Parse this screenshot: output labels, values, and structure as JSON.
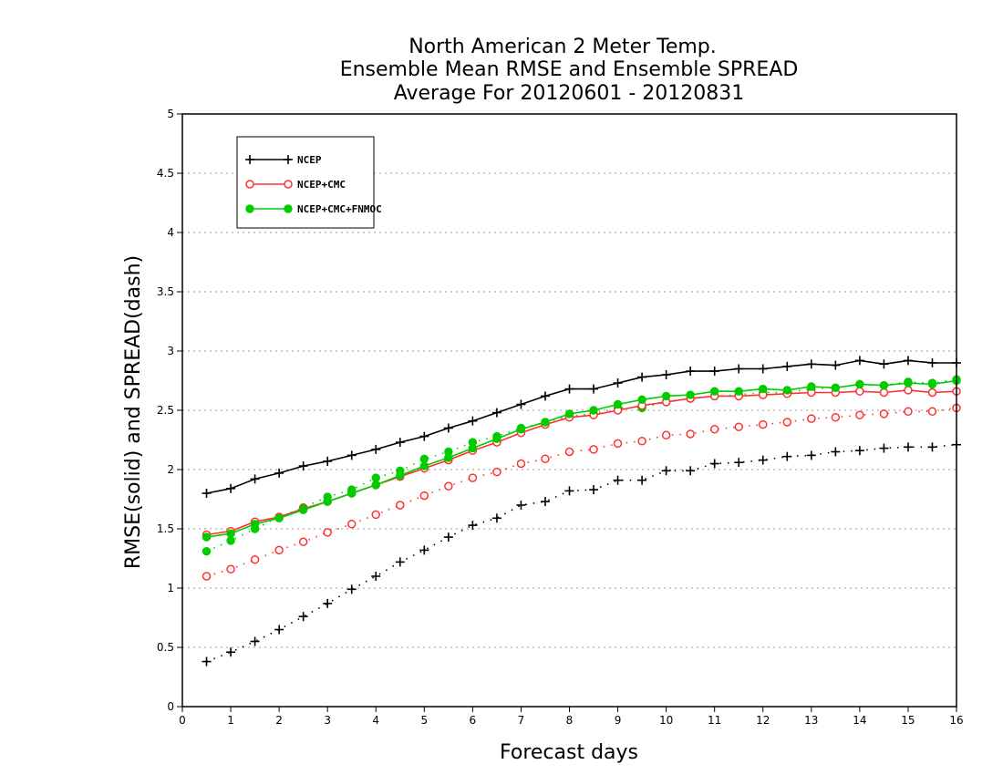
{
  "chart_data": {
    "type": "line",
    "title": [
      "North American 2 Meter Temp.",
      "Ensemble Mean RMSE and Ensemble SPREAD",
      "Average For 20120601 - 20120831"
    ],
    "xlabel": "Forecast days",
    "ylabel": "RMSE(solid) and SPREAD(dash)",
    "xlim": [
      0,
      16
    ],
    "ylim": [
      0,
      5
    ],
    "xticks": [
      "0",
      "1",
      "2",
      "3",
      "4",
      "5",
      "6",
      "7",
      "8",
      "9",
      "10",
      "11",
      "12",
      "13",
      "14",
      "15",
      "16"
    ],
    "yticks": [
      "0",
      "0.5",
      "1",
      "1.5",
      "2",
      "2.5",
      "3",
      "3.5",
      "4",
      "4.5",
      "5"
    ],
    "grid": true,
    "legend_position": "top-left",
    "x": [
      0.5,
      1,
      1.5,
      2,
      2.5,
      3,
      3.5,
      4,
      4.5,
      5,
      5.5,
      6,
      6.5,
      7,
      7.5,
      8,
      8.5,
      9,
      9.5,
      10,
      10.5,
      11,
      11.5,
      12,
      12.5,
      13,
      13.5,
      14,
      14.5,
      15,
      15.5,
      16
    ],
    "series": [
      {
        "name": "NCEP",
        "metric": "RMSE",
        "line": "solid",
        "marker": "plus",
        "color": "#000000",
        "values": [
          1.8,
          1.84,
          1.92,
          1.97,
          2.03,
          2.07,
          2.12,
          2.17,
          2.23,
          2.28,
          2.35,
          2.41,
          2.48,
          2.55,
          2.62,
          2.68,
          2.68,
          2.73,
          2.78,
          2.8,
          2.83,
          2.83,
          2.85,
          2.85,
          2.87,
          2.89,
          2.88,
          2.92,
          2.89,
          2.92,
          2.9,
          2.9
        ]
      },
      {
        "name": "NCEP+CMC",
        "metric": "RMSE",
        "line": "solid",
        "marker": "circle-open",
        "color": "#ff3030",
        "values": [
          1.45,
          1.48,
          1.56,
          1.6,
          1.67,
          1.73,
          1.8,
          1.87,
          1.94,
          2.01,
          2.08,
          2.16,
          2.23,
          2.31,
          2.38,
          2.44,
          2.46,
          2.5,
          2.54,
          2.57,
          2.6,
          2.62,
          2.62,
          2.63,
          2.64,
          2.65,
          2.65,
          2.66,
          2.65,
          2.67,
          2.65,
          2.66
        ]
      },
      {
        "name": "NCEP+CMC+FNMOC",
        "metric": "RMSE",
        "line": "solid",
        "marker": "circle-filled",
        "color": "#00cc00",
        "values": [
          1.43,
          1.46,
          1.54,
          1.59,
          1.66,
          1.73,
          1.8,
          1.87,
          1.95,
          2.03,
          2.1,
          2.18,
          2.26,
          2.34,
          2.4,
          2.47,
          2.5,
          2.55,
          2.59,
          2.62,
          2.63,
          2.66,
          2.66,
          2.68,
          2.67,
          2.7,
          2.69,
          2.72,
          2.71,
          2.73,
          2.72,
          2.75
        ]
      },
      {
        "name": "NCEP",
        "metric": "SPREAD",
        "line": "dash",
        "marker": "plus",
        "color": "#000000",
        "values": [
          0.38,
          0.46,
          0.55,
          0.65,
          0.76,
          0.87,
          0.99,
          1.1,
          1.22,
          1.32,
          1.43,
          1.53,
          1.59,
          1.7,
          1.73,
          1.82,
          1.83,
          1.91,
          1.91,
          1.99,
          1.99,
          2.05,
          2.06,
          2.08,
          2.11,
          2.12,
          2.15,
          2.16,
          2.18,
          2.19,
          2.19,
          2.21
        ]
      },
      {
        "name": "NCEP+CMC",
        "metric": "SPREAD",
        "line": "dash",
        "marker": "circle-open",
        "color": "#ff3030",
        "values": [
          1.1,
          1.16,
          1.24,
          1.32,
          1.39,
          1.47,
          1.54,
          1.62,
          1.7,
          1.78,
          1.86,
          1.93,
          1.98,
          2.05,
          2.09,
          2.15,
          2.17,
          2.22,
          2.24,
          2.29,
          2.3,
          2.34,
          2.36,
          2.38,
          2.4,
          2.43,
          2.44,
          2.46,
          2.47,
          2.49,
          2.49,
          2.52
        ]
      },
      {
        "name": "NCEP+CMC+FNMOC",
        "metric": "SPREAD",
        "line": "dash",
        "marker": "circle-filled",
        "color": "#00cc00",
        "values": [
          1.31,
          1.4,
          1.5,
          1.6,
          1.68,
          1.77,
          1.83,
          1.93,
          1.99,
          2.09,
          2.15,
          2.23,
          2.28,
          2.35,
          2.4,
          2.45,
          2.47,
          2.52,
          2.52,
          2.57,
          2.6,
          2.62,
          2.63,
          2.65,
          2.65,
          2.68,
          2.69,
          2.72,
          2.71,
          2.74,
          2.73,
          2.76
        ]
      }
    ]
  }
}
